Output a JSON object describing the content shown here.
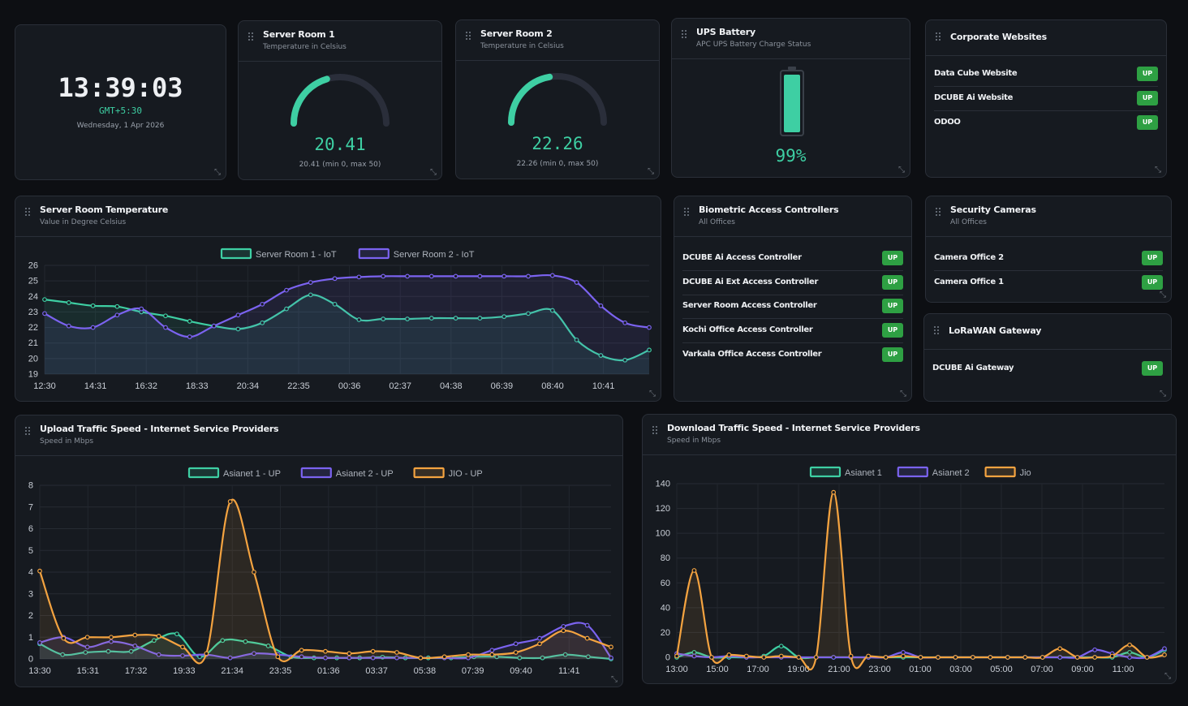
{
  "clock": {
    "time": "13:39:03",
    "timezone": "GMT+5:30",
    "date": "Wednesday, 1 Apr 2026"
  },
  "server_room_1": {
    "title": "Server Room 1",
    "subtitle": "Temperature in Celsius",
    "value": "20.41",
    "range": "20.41 (min 0, max 50)",
    "gauge_fraction": 0.408
  },
  "server_room_2": {
    "title": "Server Room 2",
    "subtitle": "Temperature in Celsius",
    "value": "22.26",
    "range": "22.26 (min 0, max 50)",
    "gauge_fraction": 0.445
  },
  "ups": {
    "title": "UPS Battery",
    "subtitle": "APC UPS Battery Charge Status",
    "value": "99%",
    "charge_fraction": 0.99
  },
  "websites": {
    "title": "Corporate Websites",
    "items": [
      {
        "label": "Data Cube Website",
        "status": "UP"
      },
      {
        "label": "DCUBE Ai Website",
        "status": "UP"
      },
      {
        "label": "ODOO",
        "status": "UP"
      }
    ]
  },
  "temp_chart": {
    "title": "Server Room Temperature",
    "subtitle": "Value in Degree Celsius"
  },
  "biometric": {
    "title": "Biometric Access Controllers",
    "subtitle": "All Offices",
    "items": [
      {
        "label": "DCUBE Ai Access Controller",
        "status": "UP"
      },
      {
        "label": "DCUBE Ai Ext Access Controller",
        "status": "UP"
      },
      {
        "label": "Server Room Access Controller",
        "status": "UP"
      },
      {
        "label": "Kochi Office Access Controller",
        "status": "UP"
      },
      {
        "label": "Varkala Office Access Controller",
        "status": "UP"
      }
    ]
  },
  "cameras": {
    "title": "Security Cameras",
    "subtitle": "All Offices",
    "items": [
      {
        "label": "Camera Office 2",
        "status": "UP"
      },
      {
        "label": "Camera Office 1",
        "status": "UP"
      }
    ]
  },
  "lorawan": {
    "title": "LoRaWAN Gateway",
    "items": [
      {
        "label": "DCUBE Ai Gateway",
        "status": "UP"
      }
    ]
  },
  "upload_chart": {
    "title": "Upload Traffic Speed - Internet Service Providers",
    "subtitle": "Speed in Mbps"
  },
  "download_chart": {
    "title": "Download Traffic Speed - Internet Service Providers",
    "subtitle": "Speed in Mbps"
  },
  "colors": {
    "teal": "#3ecfa3",
    "purple": "#7b63f0",
    "orange": "#f4a340",
    "badge": "#2ea043"
  },
  "icons": {
    "drag": "drag-handle-icon",
    "resize": "resize-icon"
  },
  "chart_data": [
    {
      "type": "line",
      "ylim": [
        19,
        26
      ],
      "x_ticks": [
        "12:30",
        "14:31",
        "16:32",
        "18:33",
        "20:34",
        "22:35",
        "00:36",
        "02:37",
        "04:38",
        "06:39",
        "08:40",
        "10:41"
      ],
      "y_ticks": [
        26,
        25,
        24,
        23,
        22,
        21,
        20,
        19
      ],
      "series": [
        {
          "name": "Server Room 1 - IoT",
          "color": "#3ecfa3",
          "values": [
            23.8,
            23.6,
            23.4,
            23.35,
            23.0,
            22.75,
            22.4,
            22.1,
            21.9,
            22.3,
            23.2,
            24.1,
            23.5,
            22.5,
            22.55,
            22.55,
            22.6,
            22.6,
            22.6,
            22.7,
            22.9,
            23.1,
            21.2,
            20.2,
            19.9,
            20.55
          ]
        },
        {
          "name": "Server Room 2 - IoT",
          "color": "#7b63f0",
          "values": [
            22.9,
            22.1,
            22.0,
            22.8,
            23.2,
            22.0,
            21.4,
            22.1,
            22.8,
            23.5,
            24.4,
            24.9,
            25.15,
            25.25,
            25.3,
            25.3,
            25.3,
            25.3,
            25.3,
            25.3,
            25.3,
            25.35,
            24.9,
            23.4,
            22.3,
            22.0
          ]
        }
      ]
    },
    {
      "type": "line",
      "ylim": [
        0,
        8
      ],
      "x_ticks": [
        "13:30",
        "15:31",
        "17:32",
        "19:33",
        "21:34",
        "23:35",
        "01:36",
        "03:37",
        "05:38",
        "07:39",
        "09:40",
        "11:41"
      ],
      "y_ticks": [
        8,
        7,
        6,
        5,
        4,
        3,
        2,
        1,
        0
      ],
      "series": [
        {
          "name": "Asianet 1 - UP",
          "color": "#3ecfa3",
          "values": [
            0.7,
            0.2,
            0.3,
            0.35,
            0.35,
            0.85,
            1.15,
            0.1,
            0.85,
            0.8,
            0.6,
            0.1,
            0.05,
            0.05,
            0.05,
            0.08,
            0.05,
            0.05,
            0.05,
            0.1,
            0.1,
            0.05,
            0.05,
            0.2,
            0.1,
            0.0
          ]
        },
        {
          "name": "Asianet 2 - UP",
          "color": "#7b63f0",
          "values": [
            0.75,
            1.0,
            0.55,
            0.8,
            0.6,
            0.2,
            0.15,
            0.2,
            0.05,
            0.25,
            0.2,
            0.1,
            0.05,
            0.05,
            0.05,
            0.05,
            0.05,
            0.05,
            0.05,
            0.4,
            0.7,
            0.95,
            1.5,
            1.55,
            0.05
          ]
        },
        {
          "name": "JIO - UP",
          "color": "#f4a340",
          "values": [
            4.05,
            0.95,
            1.0,
            1.0,
            1.1,
            1.05,
            0.55,
            0.25,
            7.25,
            4.0,
            0.1,
            0.4,
            0.35,
            0.25,
            0.35,
            0.3,
            0.05,
            0.1,
            0.2,
            0.2,
            0.3,
            0.7,
            1.3,
            0.95,
            0.55
          ]
        }
      ]
    },
    {
      "type": "line",
      "ylim": [
        0,
        140
      ],
      "x_ticks": [
        "13:00",
        "15:00",
        "17:00",
        "19:00",
        "21:00",
        "23:00",
        "01:00",
        "03:00",
        "05:00",
        "07:00",
        "09:00",
        "11:00"
      ],
      "y_ticks": [
        140,
        120,
        100,
        80,
        60,
        40,
        20,
        0
      ],
      "series": [
        {
          "name": "Asianet 1",
          "color": "#3ecfa3",
          "values": [
            0,
            4,
            0,
            0,
            0,
            1,
            9,
            0,
            0,
            0,
            0,
            0,
            0,
            0,
            0,
            0,
            0,
            0,
            0,
            0,
            0,
            0,
            0,
            0,
            0,
            0,
            4,
            0,
            6
          ]
        },
        {
          "name": "Asianet 2",
          "color": "#7b63f0",
          "values": [
            3,
            1,
            0,
            1,
            0,
            0,
            0,
            0,
            0,
            0,
            0,
            0,
            0,
            4,
            0,
            0,
            0,
            0,
            0,
            0,
            0,
            0,
            0,
            0,
            6,
            3,
            0,
            0,
            7
          ]
        },
        {
          "name": "Jio",
          "color": "#f4a340",
          "values": [
            1,
            70,
            0,
            2,
            1,
            0,
            1,
            0,
            0,
            133,
            1,
            1,
            0,
            1,
            0,
            0,
            0,
            0,
            0,
            0,
            0,
            0,
            7,
            0,
            0,
            1,
            10,
            0,
            2
          ]
        }
      ]
    }
  ]
}
